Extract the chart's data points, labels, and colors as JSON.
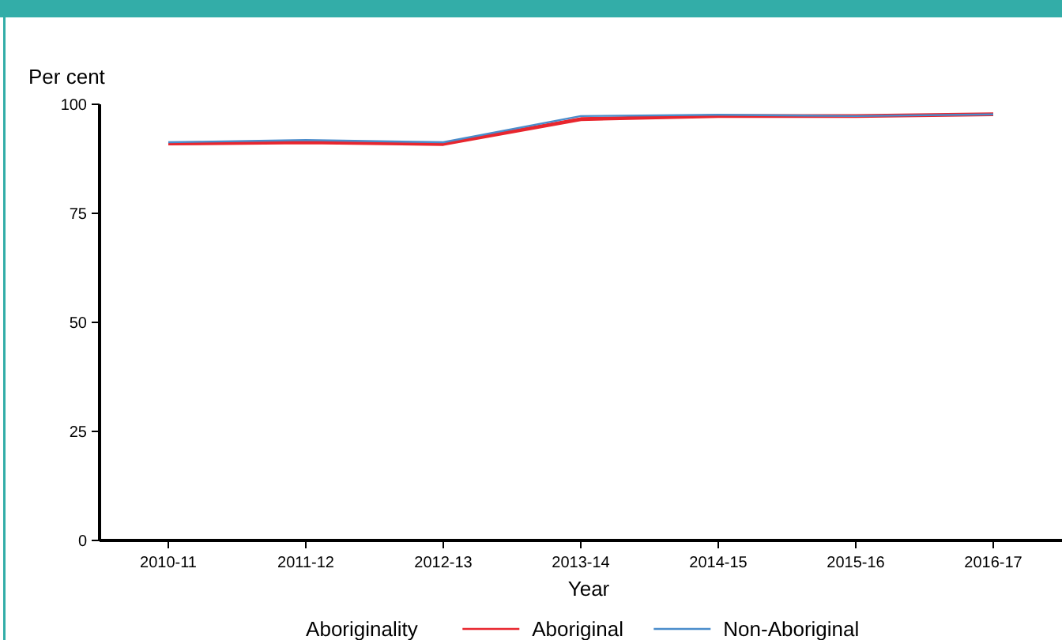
{
  "chart_data": {
    "type": "line",
    "ylabel": "Per cent",
    "xlabel": "Year",
    "legend_title": "Aboriginality",
    "categories": [
      "2010-11",
      "2011-12",
      "2012-13",
      "2013-14",
      "2014-15",
      "2015-16",
      "2016-17"
    ],
    "series": [
      {
        "name": "Aboriginal",
        "color": "#e8262e",
        "values": [
          91.0,
          91.3,
          90.9,
          96.6,
          97.3,
          97.3,
          97.7
        ]
      },
      {
        "name": "Non-Aboriginal",
        "color": "#4a8ccb",
        "values": [
          91.3,
          91.8,
          91.3,
          97.3,
          97.6,
          97.3,
          97.7
        ]
      }
    ],
    "ylim": [
      0,
      100
    ],
    "yticks": [
      0,
      25,
      50,
      75,
      100
    ],
    "grid": false,
    "legend": "bottom",
    "marker": "none",
    "line_style": "solid"
  }
}
